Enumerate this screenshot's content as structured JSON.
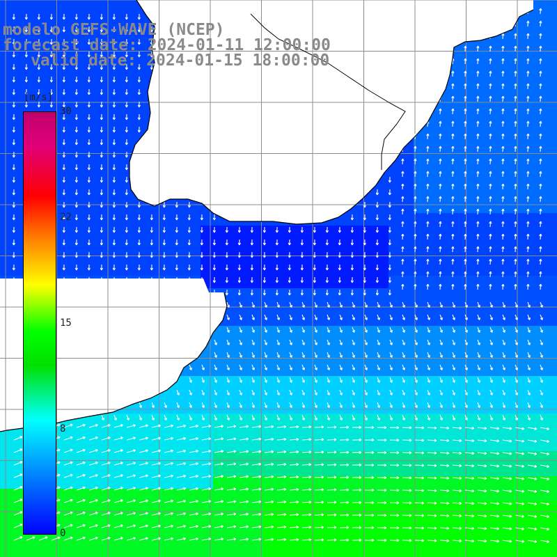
{
  "title": {
    "line1": "modelo GEFS-WAVE (NCEP)",
    "line2": "forecast date: 2024-01-11 12:00:00",
    "line3": "valid date: 2024-01-15 18:00:00"
  },
  "legend": {
    "unit": "[m/s]",
    "ticks": [
      "30",
      "22",
      "15",
      "8",
      "0"
    ],
    "min": 0,
    "max": 30,
    "colors": [
      "#0000ff",
      "#00aaff",
      "#00ffff",
      "#00e000",
      "#ffff00",
      "#ff7f00",
      "#ff0000",
      "#c0006a"
    ]
  },
  "map": {
    "field": "wind speed",
    "grid_lines": true,
    "coastline_color": "#000000",
    "arrow_color": "#ffffff",
    "land_color": "#ffffff"
  }
}
